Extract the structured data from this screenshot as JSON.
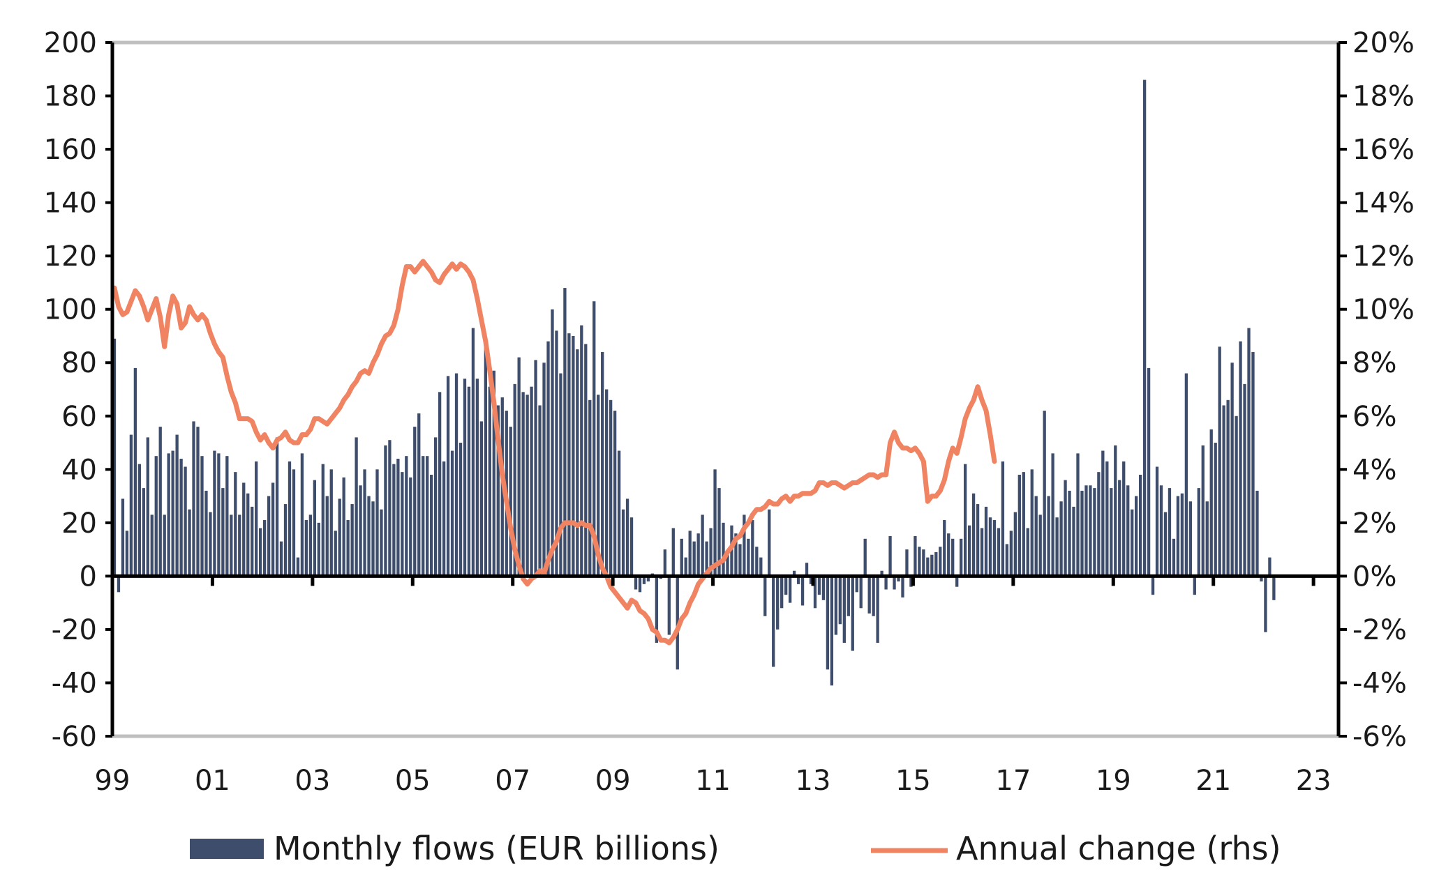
{
  "chart_data": {
    "type": "bar+line",
    "x_tick_labels": [
      "99",
      "01",
      "03",
      "05",
      "07",
      "09",
      "11",
      "13",
      "15",
      "17",
      "19",
      "21",
      "23"
    ],
    "left_axis": {
      "ticks": [
        200,
        180,
        160,
        140,
        120,
        100,
        80,
        60,
        40,
        20,
        0,
        -20,
        -40,
        -60
      ],
      "ylim": [
        -60,
        200
      ]
    },
    "right_axis": {
      "ticks": [
        "20%",
        "18%",
        "16%",
        "14%",
        "12%",
        "10%",
        "8%",
        "6%",
        "4%",
        "2%",
        "0%",
        "-2%",
        "-4%",
        "-6%"
      ],
      "ylim": [
        -6,
        20
      ]
    },
    "x_range": [
      1999.0,
      2023.5
    ],
    "grid": false,
    "legend_position": "bottom",
    "colors": {
      "bars": "#3d4d6b",
      "line": "#f08462",
      "frame": "#bfbfbf",
      "axis": "#000000"
    },
    "series": [
      {
        "name": "Monthly flows (EUR billions)",
        "kind": "bar",
        "start": 1999.0,
        "step_months": 1,
        "values": [
          89,
          -6,
          29,
          17,
          53,
          78,
          42,
          33,
          52,
          23,
          45,
          56,
          23,
          46,
          47,
          53,
          44,
          41,
          25,
          58,
          56,
          45,
          32,
          24,
          47,
          46,
          33,
          45,
          23,
          39,
          23,
          35,
          31,
          26,
          43,
          18,
          21,
          30,
          35,
          52,
          13,
          27,
          43,
          40,
          7,
          46,
          21,
          23,
          36,
          20,
          42,
          30,
          40,
          17,
          29,
          37,
          21,
          27,
          52,
          34,
          40,
          30,
          28,
          40,
          25,
          49,
          51,
          42,
          44,
          39,
          45,
          37,
          56,
          61,
          45,
          45,
          38,
          52,
          69,
          43,
          75,
          47,
          76,
          50,
          74,
          71,
          93,
          74,
          58,
          86,
          71,
          77,
          64,
          67,
          62,
          56,
          72,
          82,
          69,
          68,
          71,
          81,
          64,
          80,
          88,
          100,
          92,
          76,
          108,
          91,
          90,
          85,
          94,
          87,
          66,
          103,
          68,
          84,
          70,
          66,
          62,
          47,
          25,
          29,
          22,
          -5,
          -6,
          -3,
          -2,
          1,
          -25,
          -1,
          10,
          -22,
          18,
          -35,
          14,
          7,
          17,
          13,
          16,
          23,
          13,
          18,
          40,
          33,
          20,
          8,
          19,
          16,
          12,
          23,
          14,
          21,
          11,
          7,
          -15,
          25,
          -34,
          -20,
          -12,
          -7,
          -10,
          2,
          -3,
          -11,
          5,
          -3,
          -12,
          -7,
          -9,
          -35,
          -41,
          -22,
          -18,
          -25,
          -15,
          -28,
          -6,
          -12,
          14,
          -14,
          -15,
          -25,
          2,
          -5,
          15,
          -5,
          -2,
          -8,
          10,
          -4,
          15,
          11,
          10,
          7,
          8,
          9,
          11,
          21,
          16,
          14,
          -4,
          14,
          42,
          19,
          31,
          27,
          18,
          26,
          22,
          21,
          18,
          43,
          12,
          17,
          24,
          38,
          39,
          18,
          40,
          30,
          23,
          62,
          30,
          46,
          22,
          28,
          36,
          32,
          26,
          46,
          32,
          34,
          34,
          33,
          39,
          47,
          43,
          33,
          49,
          36,
          43,
          34,
          25,
          30,
          38,
          186,
          78,
          -7,
          41,
          34,
          24,
          33,
          14,
          30,
          31,
          76,
          28,
          -7,
          33,
          49,
          28,
          55,
          50,
          86,
          64,
          66,
          80,
          60,
          88,
          72,
          93,
          84,
          32,
          -2,
          -21,
          7,
          -9
        ]
      },
      {
        "name": "Annual change (rhs)",
        "kind": "line",
        "start": 1999.0,
        "step_months": 1,
        "values": [
          10.8,
          10.1,
          9.8,
          9.9,
          10.3,
          10.7,
          10.5,
          10.1,
          9.6,
          10.0,
          10.4,
          9.7,
          8.6,
          9.8,
          10.5,
          10.2,
          9.3,
          9.5,
          10.1,
          9.8,
          9.6,
          9.8,
          9.6,
          9.1,
          8.7,
          8.4,
          8.2,
          7.5,
          6.9,
          6.5,
          5.9,
          5.9,
          5.9,
          5.8,
          5.4,
          5.1,
          5.3,
          5.0,
          4.8,
          5.1,
          5.2,
          5.4,
          5.1,
          5.0,
          5.0,
          5.3,
          5.3,
          5.5,
          5.9,
          5.9,
          5.8,
          5.7,
          5.9,
          6.1,
          6.3,
          6.6,
          6.8,
          7.1,
          7.3,
          7.6,
          7.7,
          7.6,
          8.0,
          8.3,
          8.7,
          9.0,
          9.1,
          9.4,
          10.0,
          10.9,
          11.6,
          11.6,
          11.4,
          11.6,
          11.8,
          11.6,
          11.4,
          11.1,
          11.0,
          11.3,
          11.5,
          11.7,
          11.5,
          11.7,
          11.6,
          11.4,
          11.1,
          10.4,
          9.6,
          8.8,
          7.7,
          6.5,
          5.1,
          3.8,
          2.8,
          1.8,
          1.0,
          0.4,
          -0.1,
          -0.3,
          -0.1,
          0.0,
          0.2,
          0.1,
          0.6,
          1.0,
          1.3,
          1.8,
          2.0,
          2.0,
          2.0,
          1.9,
          2.0,
          1.9,
          1.9,
          1.5,
          0.8,
          0.3,
          0.0,
          -0.4,
          -0.6,
          -0.8,
          -1.0,
          -1.2,
          -0.9,
          -1.0,
          -1.3,
          -1.4,
          -1.6,
          -2.0,
          -2.1,
          -2.4,
          -2.4,
          -2.5,
          -2.3,
          -2.0,
          -1.6,
          -1.4,
          -1.0,
          -0.7,
          -0.3,
          -0.1,
          0.1,
          0.3,
          0.4,
          0.5,
          0.6,
          0.9,
          1.1,
          1.4,
          1.5,
          1.8,
          2.0,
          2.3,
          2.5,
          2.5,
          2.6,
          2.8,
          2.7,
          2.7,
          2.9,
          3.0,
          2.8,
          3.0,
          3.0,
          3.1,
          3.1,
          3.1,
          3.2,
          3.5,
          3.5,
          3.4,
          3.5,
          3.5,
          3.4,
          3.3,
          3.4,
          3.5,
          3.5,
          3.6,
          3.7,
          3.8,
          3.8,
          3.7,
          3.8,
          3.8,
          5.0,
          5.4,
          5.0,
          4.8,
          4.8,
          4.7,
          4.8,
          4.6,
          4.3,
          2.8,
          3.0,
          3.0,
          3.2,
          3.6,
          4.3,
          4.8,
          4.6,
          5.2,
          5.9,
          6.3,
          6.6,
          7.1,
          6.6,
          6.2,
          5.3,
          4.3
        ]
      }
    ]
  },
  "legend": {
    "bars_label": "Monthly flows (EUR billions)",
    "line_label": "Annual change (rhs)"
  }
}
